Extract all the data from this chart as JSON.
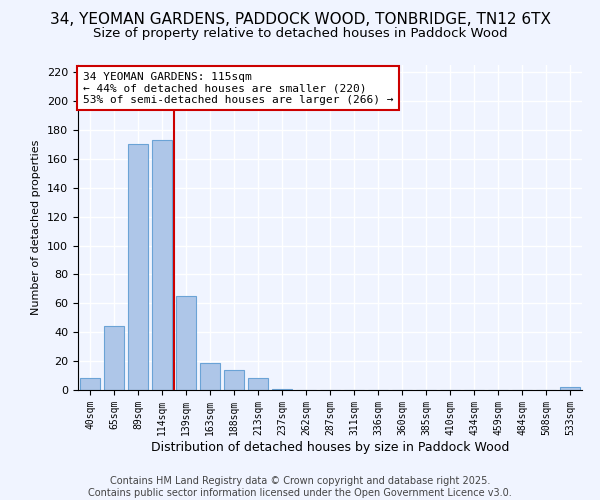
{
  "title": "34, YEOMAN GARDENS, PADDOCK WOOD, TONBRIDGE, TN12 6TX",
  "subtitle": "Size of property relative to detached houses in Paddock Wood",
  "xlabel": "Distribution of detached houses by size in Paddock Wood",
  "ylabel": "Number of detached properties",
  "bar_labels": [
    "40sqm",
    "65sqm",
    "89sqm",
    "114sqm",
    "139sqm",
    "163sqm",
    "188sqm",
    "213sqm",
    "237sqm",
    "262sqm",
    "287sqm",
    "311sqm",
    "336sqm",
    "360sqm",
    "385sqm",
    "410sqm",
    "434sqm",
    "459sqm",
    "484sqm",
    "508sqm",
    "533sqm"
  ],
  "bar_values": [
    8,
    44,
    170,
    173,
    65,
    19,
    14,
    8,
    1,
    0,
    0,
    0,
    0,
    0,
    0,
    0,
    0,
    0,
    0,
    0,
    2
  ],
  "bar_color": "#aec6e8",
  "bar_edge_color": "#6ba3d6",
  "background_color": "#f0f4ff",
  "grid_color": "#ffffff",
  "vline_x": 3.5,
  "vline_color": "#cc0000",
  "annotation_line1": "34 YEOMAN GARDENS: 115sqm",
  "annotation_line2": "← 44% of detached houses are smaller (220)",
  "annotation_line3": "53% of semi-detached houses are larger (266) →",
  "annotation_box_color": "#ffffff",
  "annotation_border_color": "#cc0000",
  "ylim": [
    0,
    225
  ],
  "yticks": [
    0,
    20,
    40,
    60,
    80,
    100,
    120,
    140,
    160,
    180,
    200,
    220
  ],
  "footer_line1": "Contains HM Land Registry data © Crown copyright and database right 2025.",
  "footer_line2": "Contains public sector information licensed under the Open Government Licence v3.0.",
  "title_fontsize": 11,
  "subtitle_fontsize": 9.5,
  "annotation_fontsize": 8,
  "footer_fontsize": 7,
  "ylabel_fontsize": 8,
  "xlabel_fontsize": 9
}
